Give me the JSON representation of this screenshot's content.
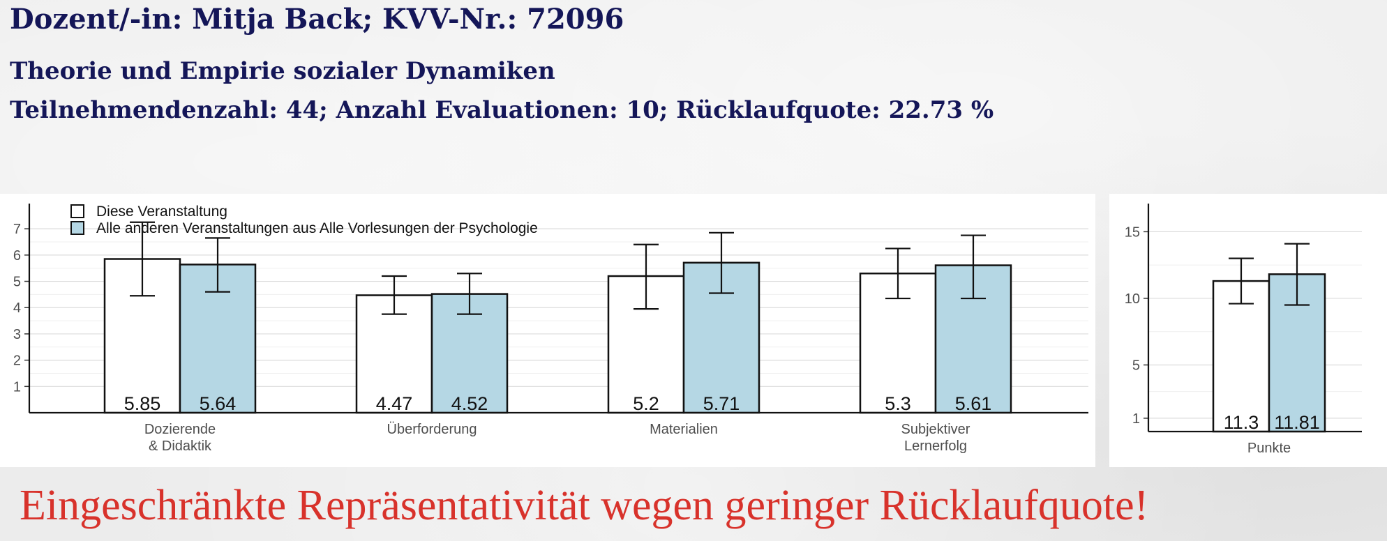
{
  "header": {
    "title": "Dozent/-in: Mitja Back; KVV-Nr.: 72096",
    "course": "Theorie und Empirie sozialer Dynamiken",
    "stats": "Teilnehmendenzahl: 44; Anzahl Evaluationen: 10; Rücklaufquote: 22.73 %"
  },
  "warning": "Eingeschränkte Repräsentativität wegen geringer Rücklaufquote!",
  "colors": {
    "header": "#141658",
    "warning": "#d8322b",
    "this_course": "#ffffff",
    "others": "#b5d7e4"
  },
  "chart_data": [
    {
      "type": "bar",
      "categories": [
        "Dozierende\n& Didaktik",
        "Überforderung",
        "Materialien",
        "Subjektiver\nLernerfolg"
      ],
      "series": [
        {
          "name": "Diese Veranstaltung",
          "values": [
            5.85,
            4.47,
            5.2,
            5.3
          ],
          "labels": [
            "5.85",
            "4.47",
            "5.2",
            "5.3"
          ],
          "error_low": [
            4.45,
            3.75,
            3.95,
            4.35
          ],
          "error_high": [
            7.25,
            5.2,
            6.4,
            6.25
          ]
        },
        {
          "name": "Alle anderen Veranstaltungen aus Alle Vorlesungen der Psychologie",
          "values": [
            5.64,
            4.52,
            5.71,
            5.61
          ],
          "labels": [
            "5.64",
            "4.52",
            "5.71",
            "5.61"
          ],
          "error_low": [
            4.6,
            3.75,
            4.55,
            4.35
          ],
          "error_high": [
            6.65,
            5.3,
            6.85,
            6.75
          ]
        }
      ],
      "yticks": [
        1,
        2,
        3,
        4,
        5,
        6,
        7
      ],
      "ylim": [
        0,
        7.8
      ],
      "legend": "top-left",
      "grid": true
    },
    {
      "type": "bar",
      "categories": [
        "Punkte"
      ],
      "series": [
        {
          "name": "Diese Veranstaltung",
          "values": [
            11.3
          ],
          "labels": [
            "11.3"
          ],
          "error_low": [
            9.6
          ],
          "error_high": [
            13.0
          ]
        },
        {
          "name": "Alle anderen Veranstaltungen aus Alle Vorlesungen der Psychologie",
          "values": [
            11.81
          ],
          "labels": [
            "11.81"
          ],
          "error_low": [
            9.5
          ],
          "error_high": [
            14.1
          ]
        }
      ],
      "yticks": [
        1,
        5,
        10,
        15
      ],
      "ylim": [
        0,
        16.8
      ],
      "grid": true
    }
  ]
}
